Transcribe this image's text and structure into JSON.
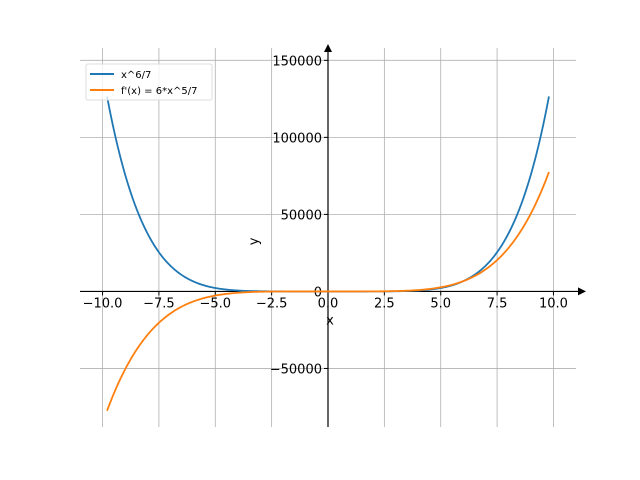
{
  "chart_data": {
    "type": "line",
    "xlabel": "x",
    "ylabel": "y",
    "xlim": [
      -11,
      11
    ],
    "ylim": [
      -88000,
      158000
    ],
    "xticks": [
      -10,
      -7.5,
      -5,
      -2.5,
      0,
      2.5,
      5,
      7.5,
      10
    ],
    "xtick_labels": [
      "−10.0",
      "−7.5",
      "−5.0",
      "−2.5",
      "0.0",
      "2.5",
      "5.0",
      "7.5",
      "10.0"
    ],
    "yticks": [
      -50000,
      0,
      50000,
      100000,
      150000
    ],
    "ytick_labels": [
      "−50000",
      "0",
      "50000",
      "100000",
      "150000"
    ],
    "grid": true,
    "legend_position": "top-left",
    "x_range": [
      -9.8,
      9.8
    ],
    "series": [
      {
        "name": "x^6/7",
        "color": "#1f77b4",
        "formula": "x^6/7"
      },
      {
        "name": "f'(x) = 6*x^5/7",
        "color": "#ff7f0e",
        "formula": "6*x^5/7"
      }
    ]
  }
}
